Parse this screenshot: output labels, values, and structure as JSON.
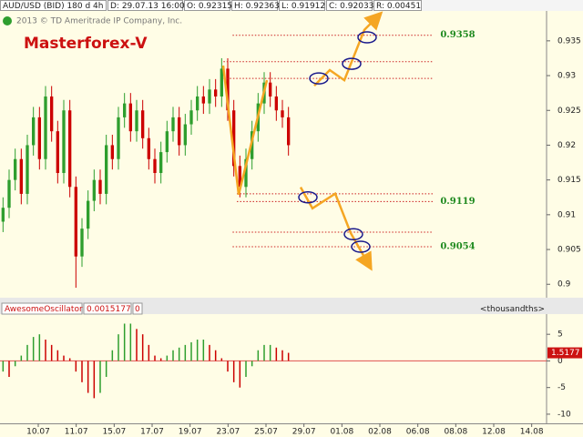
{
  "header": {
    "symbol": "AUD/USD (BID) 180 d 4h",
    "date": "D: 29.07.13 16:00",
    "open": "O: 0.92315",
    "high": "H: 0.92363",
    "low": "L: 0.91912",
    "close": "C: 0.92033",
    "range": "R: 0.00451"
  },
  "copyright": "2013 © TD Ameritrade IP Company, Inc.",
  "chart_data": [
    {
      "type": "candlestick",
      "title": "Masterforex-V",
      "x": [
        0.5,
        1.5,
        2.5,
        3.5,
        4.5,
        5.5,
        6.5,
        7.5,
        8.5,
        9.5,
        10.5,
        11.5,
        12.5,
        13.5,
        14.5,
        15.5,
        16.5,
        17.5,
        18.5,
        19.5,
        20.5,
        21.5,
        22.5,
        23.5,
        24.5,
        25.5,
        26.5,
        27.5,
        28.5,
        29.5,
        30.5,
        31.5,
        32.5,
        33.5,
        34.5,
        35.5,
        36.5,
        37.5,
        38.5,
        39.5,
        40.5,
        41.5,
        42.5,
        43.5,
        44.5,
        45.5,
        46.5,
        47.5
      ],
      "open": [
        0.909,
        0.911,
        0.915,
        0.918,
        0.913,
        0.92,
        0.924,
        0.918,
        0.927,
        0.922,
        0.916,
        0.925,
        0.914,
        0.904,
        0.908,
        0.912,
        0.915,
        0.913,
        0.92,
        0.918,
        0.924,
        0.926,
        0.922,
        0.925,
        0.921,
        0.918,
        0.916,
        0.919,
        0.922,
        0.924,
        0.92,
        0.923,
        0.925,
        0.927,
        0.926,
        0.928,
        0.927,
        0.931,
        0.925,
        0.917,
        0.914,
        0.918,
        0.922,
        0.926,
        0.929,
        0.927,
        0.925,
        0.924
      ],
      "high": [
        0.9125,
        0.9165,
        0.9195,
        0.9195,
        0.9215,
        0.9255,
        0.9255,
        0.9285,
        0.9285,
        0.9235,
        0.9265,
        0.9265,
        0.9155,
        0.9095,
        0.9135,
        0.9165,
        0.9165,
        0.9215,
        0.9215,
        0.9255,
        0.9275,
        0.9275,
        0.9265,
        0.9265,
        0.9225,
        0.9195,
        0.9205,
        0.9235,
        0.9255,
        0.9255,
        0.9245,
        0.9265,
        0.9285,
        0.9285,
        0.9295,
        0.9295,
        0.9325,
        0.9325,
        0.9265,
        0.9185,
        0.9195,
        0.9235,
        0.9275,
        0.9305,
        0.9305,
        0.9285,
        0.9265,
        0.9255
      ],
      "low": [
        0.9075,
        0.9095,
        0.9135,
        0.9115,
        0.9115,
        0.9185,
        0.9165,
        0.9165,
        0.9205,
        0.9145,
        0.9145,
        0.9125,
        0.8995,
        0.9025,
        0.9065,
        0.9105,
        0.9115,
        0.9115,
        0.9165,
        0.9165,
        0.9225,
        0.9205,
        0.9205,
        0.9195,
        0.9165,
        0.9145,
        0.9145,
        0.9175,
        0.9205,
        0.9185,
        0.9185,
        0.9215,
        0.9235,
        0.9245,
        0.9245,
        0.9255,
        0.9255,
        0.9235,
        0.9155,
        0.9125,
        0.9125,
        0.9165,
        0.9205,
        0.9245,
        0.9255,
        0.9235,
        0.9225,
        0.9185
      ],
      "close": [
        0.911,
        0.915,
        0.918,
        0.913,
        0.92,
        0.924,
        0.918,
        0.927,
        0.922,
        0.916,
        0.925,
        0.914,
        0.904,
        0.908,
        0.912,
        0.915,
        0.913,
        0.92,
        0.918,
        0.924,
        0.926,
        0.922,
        0.925,
        0.921,
        0.918,
        0.916,
        0.919,
        0.922,
        0.924,
        0.92,
        0.923,
        0.925,
        0.927,
        0.926,
        0.928,
        0.927,
        0.931,
        0.925,
        0.917,
        0.914,
        0.918,
        0.922,
        0.926,
        0.929,
        0.927,
        0.925,
        0.924,
        0.92
      ],
      "up_color": "#2e9e2e",
      "down_color": "#cc0000",
      "xlim": [
        0,
        90
      ],
      "ylim": [
        0.8982,
        0.9393
      ],
      "yticks": [
        0.9,
        0.905,
        0.91,
        0.915,
        0.92,
        0.925,
        0.93,
        0.935
      ],
      "xticks": [
        {
          "value": 6.3,
          "label": "10.07"
        },
        {
          "value": 12.55,
          "label": "11.07"
        },
        {
          "value": 18.8,
          "label": "15.07"
        },
        {
          "value": 25.05,
          "label": "17.07"
        },
        {
          "value": 31.3,
          "label": "19.07"
        },
        {
          "value": 37.55,
          "label": "23.07"
        },
        {
          "value": 43.8,
          "label": "25.07"
        },
        {
          "value": 50.05,
          "label": "29.07"
        },
        {
          "value": 56.3,
          "label": "01.08"
        },
        {
          "value": 62.55,
          "label": "02.08"
        },
        {
          "value": 68.8,
          "label": "06.08"
        },
        {
          "value": 75.05,
          "label": "08.08"
        },
        {
          "value": 81.3,
          "label": "12.08"
        },
        {
          "value": 87.55,
          "label": "14.08"
        }
      ],
      "levels": [
        {
          "value": 0.9358,
          "label": "0.9358",
          "x": [
            38.3,
            71.3
          ]
        },
        {
          "value": 0.932,
          "x": [
            36.8,
            71.3
          ]
        },
        {
          "value": 0.9296,
          "x": [
            36.8,
            71.3
          ]
        },
        {
          "value": 0.913,
          "x": [
            39,
            71.3
          ]
        },
        {
          "value": 0.9119,
          "label": "0.9119",
          "x": [
            39,
            71.3
          ]
        },
        {
          "value": 0.9075,
          "x": [
            38.3,
            71.3
          ]
        },
        {
          "value": 0.9054,
          "label": "0.9054",
          "x": [
            38.3,
            71.3
          ]
        }
      ],
      "level_color": "#cc2222",
      "path_color": "#f5a623",
      "ellipse_color": "#1a1a8c",
      "paths": [
        {
          "x": [
            36.75,
            39.3,
            43.95
          ],
          "y": [
            0.93145,
            0.91289,
            0.92934
          ]
        },
        {
          "x": [
            51.75,
            54.3,
            56.7,
            60,
            62.25
          ],
          "y": [
            0.92855,
            0.93079,
            0.92934,
            0.93658,
            0.93855
          ]
        },
        {
          "x": [
            49.5,
            51.45,
            55.2,
            57.75,
            60.75
          ],
          "y": [
            0.91395,
            0.91092,
            0.91303,
            0.90737,
            0.90276
          ]
        }
      ],
      "ellipses": {
        "x": [
          52.5,
          57.9,
          60.45,
          50.7,
          58.2,
          59.4
        ],
        "y": [
          0.9296,
          0.9317,
          0.9355,
          0.9125,
          0.9072,
          0.9054
        ]
      }
    },
    {
      "type": "bar",
      "title": "AwesomeOscillator",
      "current_value": "0.0015177",
      "parameter": 0,
      "unit": "<thousandths>",
      "x": [
        0.5,
        1.5,
        2.5,
        3.5,
        4.5,
        5.5,
        6.5,
        7.5,
        8.5,
        9.5,
        10.5,
        11.5,
        12.5,
        13.5,
        14.5,
        15.5,
        16.5,
        17.5,
        18.5,
        19.5,
        20.5,
        21.5,
        22.5,
        23.5,
        24.5,
        25.5,
        26.5,
        27.5,
        28.5,
        29.5,
        30.5,
        31.5,
        32.5,
        33.5,
        34.5,
        35.5,
        36.5,
        37.5,
        38.5,
        39.5,
        40.5,
        41.5,
        42.5,
        43.5,
        44.5,
        45.5,
        46.5,
        47.5
      ],
      "values": [
        -2,
        -3,
        -1,
        1,
        3,
        4.5,
        5,
        4,
        3,
        2,
        1,
        0.5,
        -2,
        -4,
        -6,
        -7,
        -6,
        -3,
        2,
        5,
        7,
        7,
        6,
        5,
        3,
        1,
        0.5,
        1,
        2,
        2.5,
        3,
        3.5,
        4,
        4,
        3,
        2,
        0.5,
        -2,
        -4,
        -5,
        -3,
        -1,
        2,
        3,
        3,
        2.5,
        2,
        1.5177
      ],
      "up_color": "#2e9e2e",
      "down_color": "#cc0000",
      "zero_color": "#e05050",
      "xlim": [
        0,
        90
      ],
      "ylim": [
        -11.72,
        8.62
      ],
      "yticks": [
        -10,
        -5,
        0,
        5
      ]
    }
  ]
}
